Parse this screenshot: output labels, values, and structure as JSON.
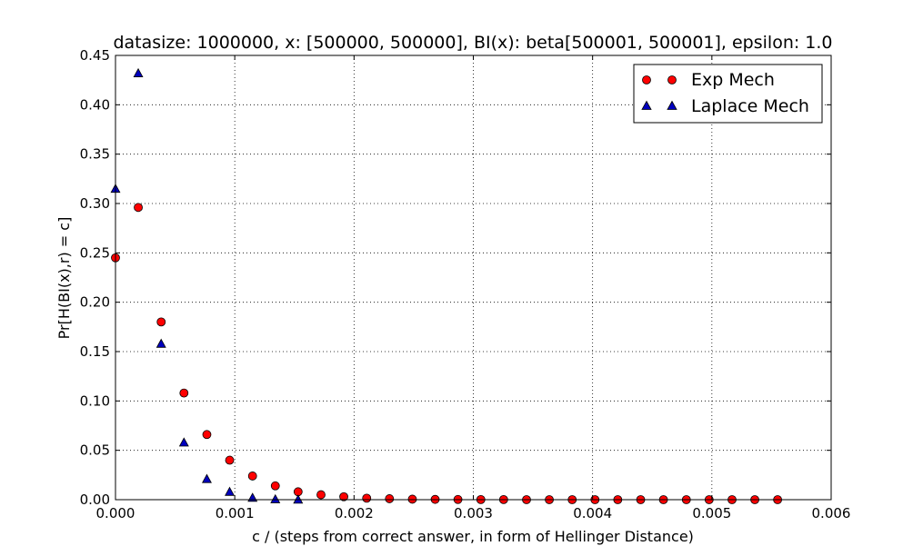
{
  "chart_data": {
    "type": "scatter",
    "title": "datasize: 1000000, x: [500000, 500000], BI(x): beta[500001, 500001], epsilon: 1.0",
    "xlabel": "c / (steps from correct answer, in form of Hellinger Distance)",
    "ylabel": "Pr[H(BI(x),r) = c]",
    "xlim": [
      0,
      0.006
    ],
    "ylim": [
      0,
      0.45
    ],
    "xticks": [
      0,
      0.001,
      0.002,
      0.003,
      0.004,
      0.005,
      0.006
    ],
    "xtick_labels": [
      "0.000",
      "0.001",
      "0.002",
      "0.003",
      "0.004",
      "0.005",
      "0.006"
    ],
    "yticks": [
      0,
      0.05,
      0.1,
      0.15,
      0.2,
      0.25,
      0.3,
      0.35,
      0.4,
      0.45
    ],
    "ytick_labels": [
      "0.00",
      "0.05",
      "0.10",
      "0.15",
      "0.20",
      "0.25",
      "0.30",
      "0.35",
      "0.40",
      "0.45"
    ],
    "grid": true,
    "legend_position": "top-right",
    "series": [
      {
        "name": "Exp Mech",
        "marker": "circle",
        "color": "#ff0000",
        "x": [
          0,
          0.000191,
          0.000383,
          0.000574,
          0.000766,
          0.000957,
          0.001149,
          0.00134,
          0.001531,
          0.001723,
          0.001914,
          0.002106,
          0.002297,
          0.002489,
          0.00268,
          0.002871,
          0.003063,
          0.003254,
          0.003446,
          0.003637,
          0.003829,
          0.00402,
          0.004211,
          0.004403,
          0.004594,
          0.004786,
          0.004977,
          0.005169,
          0.00536,
          0.005551
        ],
        "y": [
          0.245,
          0.296,
          0.18,
          0.108,
          0.066,
          0.04,
          0.024,
          0.014,
          0.008,
          0.005,
          0.003,
          0.0015,
          0.001,
          0.0005,
          0.0003,
          0.0002,
          0.0001,
          0.0001,
          0,
          0,
          0,
          0,
          0,
          0,
          0,
          0,
          0,
          0,
          0,
          0
        ]
      },
      {
        "name": "Laplace Mech",
        "marker": "triangle",
        "color": "#0000bf",
        "x": [
          0,
          0.000191,
          0.000383,
          0.000574,
          0.000766,
          0.000957,
          0.001149,
          0.00134,
          0.001531
        ],
        "y": [
          0.315,
          0.432,
          0.158,
          0.058,
          0.021,
          0.008,
          0.002,
          0.0005,
          0.0001
        ]
      }
    ]
  }
}
